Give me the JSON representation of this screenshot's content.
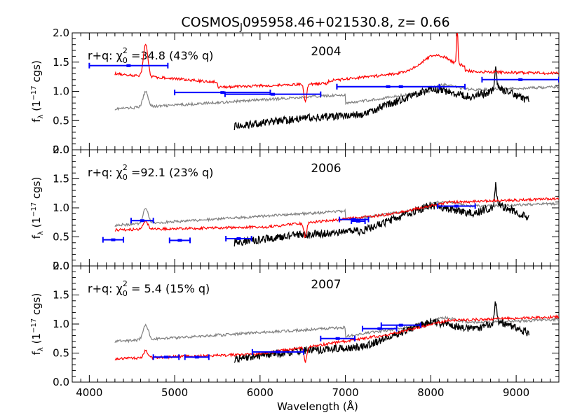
{
  "chart_data": {
    "type": "line",
    "title": {
      "prefix": "COSMOS",
      "subscript": "J",
      "suffix": "095958.46+021530.8,  z=  0.66"
    },
    "xlabel": "Wavelength (Å)",
    "ylabel": "f",
    "ylabel_sub": "λ",
    "ylabel_rest": " (1",
    "ylabel_sup": "−17",
    "ylabel_end": " cgs)",
    "xlim": [
      3800,
      9500
    ],
    "xticks": [
      4000,
      5000,
      6000,
      7000,
      8000,
      9000
    ],
    "xtick_labels": [
      "4000",
      "5000",
      "6000",
      "7000",
      "8000",
      "9000"
    ],
    "ylim": [
      0.0,
      2.0
    ],
    "yticks": [
      0.0,
      0.5,
      1.0,
      1.5,
      2.0
    ],
    "ytick_labels": [
      "0.0",
      "0.5",
      "1.0",
      "1.5",
      "2.0"
    ],
    "colors": {
      "model": "#ff0000",
      "quasar": "#808080",
      "spectrum": "#000000",
      "photometry": "#0000ff"
    },
    "panels": [
      {
        "year": "2004",
        "fit_prefix": "r+q:  χ",
        "fit_sub": "0",
        "fit_sup": "2",
        "fit_value": " =34.8 (43% q)",
        "photometry": [
          {
            "x": 4460,
            "y": 1.44,
            "xerr": 460
          },
          {
            "x": 5560,
            "y": 0.98,
            "xerr": 560
          },
          {
            "x": 6150,
            "y": 0.95,
            "xerr": 560
          },
          {
            "x": 7500,
            "y": 1.08,
            "xerr": 600
          },
          {
            "x": 7650,
            "y": 1.08,
            "xerr": 750
          },
          {
            "x": 9050,
            "y": 1.2,
            "xerr": 450
          }
        ]
      },
      {
        "year": "2006",
        "fit_prefix": "r+q:  χ",
        "fit_sub": "0",
        "fit_sup": "2",
        "fit_value": " =92.1 (23% q)",
        "photometry": [
          {
            "x": 4280,
            "y": 0.45,
            "xerr": 120
          },
          {
            "x": 4620,
            "y": 0.78,
            "xerr": 130
          },
          {
            "x": 5060,
            "y": 0.44,
            "xerr": 120
          },
          {
            "x": 5750,
            "y": 0.47,
            "xerr": 150
          },
          {
            "x": 7100,
            "y": 0.8,
            "xerr": 170
          },
          {
            "x": 7150,
            "y": 0.77,
            "xerr": 80
          },
          {
            "x": 8300,
            "y": 1.03,
            "xerr": 220
          }
        ]
      },
      {
        "year": "2007",
        "fit_prefix": "r+q:  χ",
        "fit_sub": "0",
        "fit_sup": "2",
        "fit_value": " =  5.4 (15% q)",
        "photometry": [
          {
            "x": 4900,
            "y": 0.43,
            "xerr": 150
          },
          {
            "x": 5260,
            "y": 0.43,
            "xerr": 140
          },
          {
            "x": 6210,
            "y": 0.52,
            "xerr": 300
          },
          {
            "x": 6910,
            "y": 0.75,
            "xerr": 200
          },
          {
            "x": 7400,
            "y": 0.92,
            "xerr": 200
          },
          {
            "x": 7650,
            "y": 0.98,
            "xerr": 230
          }
        ]
      }
    ]
  }
}
